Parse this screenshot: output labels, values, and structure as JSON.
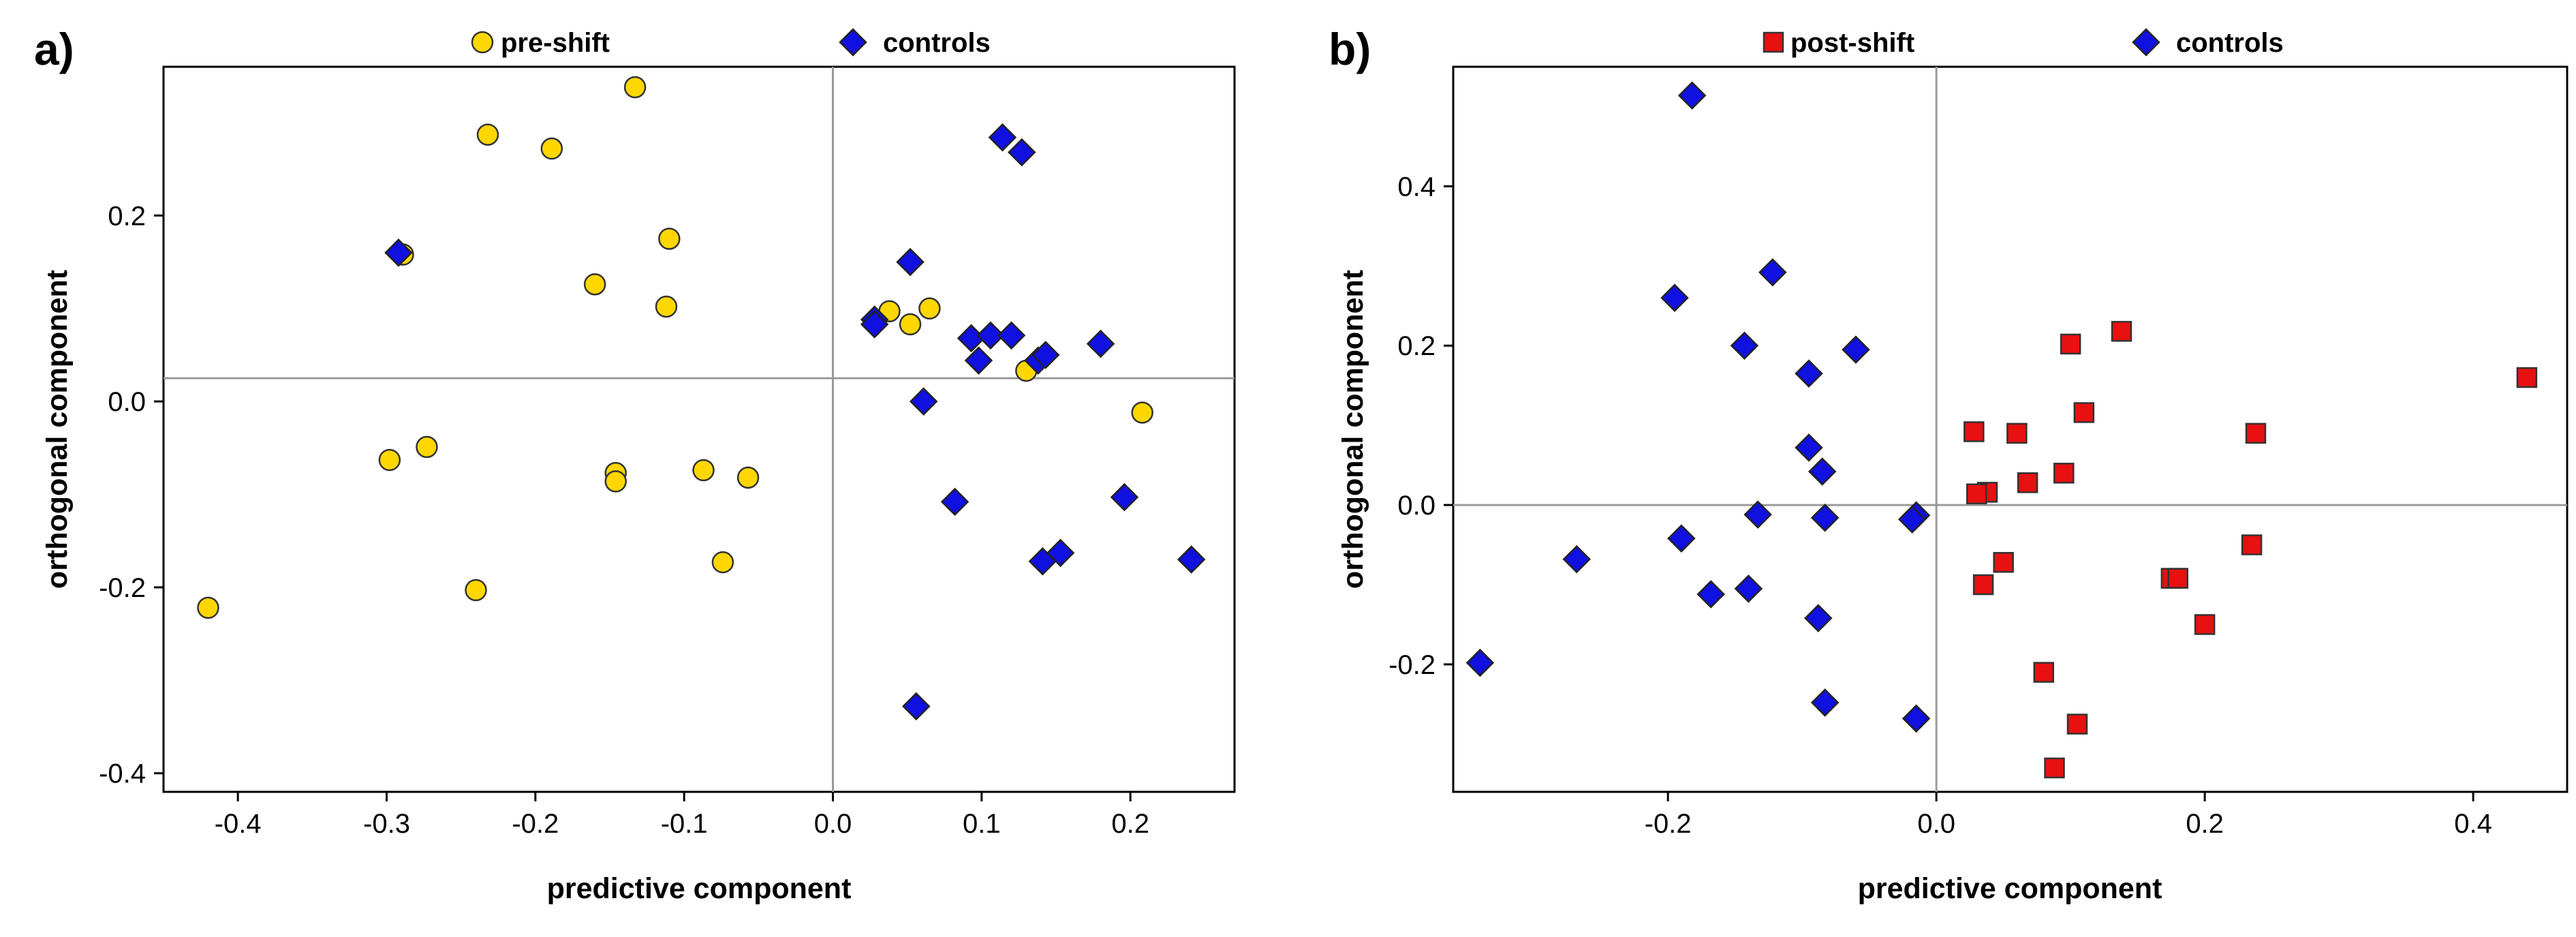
{
  "chart_data": [
    {
      "type": "scatter",
      "panel_label": "a)",
      "xlabel": "predictive component",
      "ylabel": "orthogonal component",
      "xlim": [
        -0.45,
        0.27
      ],
      "ylim": [
        -0.42,
        0.36
      ],
      "x_ticks": [
        -0.4,
        -0.3,
        -0.2,
        -0.1,
        0.0,
        0.1,
        0.2
      ],
      "x_tick_labels": [
        "-0.4",
        "-0.3",
        "-0.2",
        "-0.1",
        "0.0",
        "0.1",
        "0.2"
      ],
      "y_ticks": [
        -0.4,
        -0.2,
        0.0,
        0.2
      ],
      "y_tick_labels": [
        "-0.4",
        "-0.2",
        "0.0",
        "0.2"
      ],
      "zero_lines": {
        "x": 0.0,
        "y": 0.025
      },
      "series": [
        {
          "name": "pre-shift",
          "marker": "circle",
          "color": "#FFD700",
          "points": [
            [
              -0.133,
              0.338
            ],
            [
              -0.232,
              0.287
            ],
            [
              -0.189,
              0.272
            ],
            [
              -0.11,
              0.175
            ],
            [
              -0.16,
              0.126
            ],
            [
              -0.112,
              0.102
            ],
            [
              -0.289,
              0.158
            ],
            [
              0.038,
              0.097
            ],
            [
              0.065,
              0.1
            ],
            [
              0.052,
              0.083
            ],
            [
              0.13,
              0.033
            ],
            [
              0.208,
              -0.012
            ],
            [
              -0.298,
              -0.063
            ],
            [
              -0.273,
              -0.049
            ],
            [
              -0.146,
              -0.077
            ],
            [
              -0.146,
              -0.086
            ],
            [
              -0.087,
              -0.074
            ],
            [
              -0.057,
              -0.082
            ],
            [
              -0.074,
              -0.173
            ],
            [
              -0.24,
              -0.203
            ],
            [
              -0.42,
              -0.222
            ]
          ]
        },
        {
          "name": "controls",
          "marker": "diamond",
          "color": "#1010E0",
          "points": [
            [
              -0.292,
              0.16
            ],
            [
              0.114,
              0.284
            ],
            [
              0.127,
              0.268
            ],
            [
              0.052,
              0.15
            ],
            [
              0.028,
              0.088
            ],
            [
              0.028,
              0.083
            ],
            [
              0.093,
              0.068
            ],
            [
              0.106,
              0.071
            ],
            [
              0.12,
              0.071
            ],
            [
              0.098,
              0.044
            ],
            [
              0.138,
              0.044
            ],
            [
              0.143,
              0.05
            ],
            [
              0.18,
              0.062
            ],
            [
              0.061,
              0.0
            ],
            [
              0.082,
              -0.108
            ],
            [
              0.196,
              -0.103
            ],
            [
              0.153,
              -0.163
            ],
            [
              0.141,
              -0.172
            ],
            [
              0.241,
              -0.17
            ],
            [
              0.056,
              -0.328
            ]
          ]
        }
      ]
    },
    {
      "type": "scatter",
      "panel_label": "b)",
      "xlabel": "predictive component",
      "ylabel": "orthogonal component",
      "xlim": [
        -0.36,
        0.47
      ],
      "ylim": [
        -0.36,
        0.55
      ],
      "x_ticks": [
        -0.2,
        0.0,
        0.2,
        0.4
      ],
      "x_tick_labels": [
        "-0.2",
        "0.0",
        "0.2",
        "0.4"
      ],
      "y_ticks": [
        -0.2,
        0.0,
        0.2,
        0.4
      ],
      "y_tick_labels": [
        "-0.2",
        "0.0",
        "0.2",
        "0.4"
      ],
      "zero_lines": {
        "x": 0.0,
        "y": 0.0
      },
      "series": [
        {
          "name": "post-shift",
          "marker": "square",
          "color": "#E81010",
          "points": [
            [
              0.44,
              0.16
            ],
            [
              0.138,
              0.218
            ],
            [
              0.1,
              0.202
            ],
            [
              0.11,
              0.116
            ],
            [
              0.238,
              0.09
            ],
            [
              0.028,
              0.092
            ],
            [
              0.06,
              0.09
            ],
            [
              0.095,
              0.04
            ],
            [
              0.068,
              0.028
            ],
            [
              0.038,
              0.016
            ],
            [
              0.03,
              0.014
            ],
            [
              0.05,
              -0.072
            ],
            [
              0.035,
              -0.1
            ],
            [
              0.175,
              -0.092
            ],
            [
              0.18,
              -0.092
            ],
            [
              0.235,
              -0.05
            ],
            [
              0.2,
              -0.15
            ],
            [
              0.08,
              -0.21
            ],
            [
              0.105,
              -0.275
            ],
            [
              0.088,
              -0.33
            ]
          ]
        },
        {
          "name": "controls",
          "marker": "diamond",
          "color": "#1010E0",
          "points": [
            [
              -0.182,
              0.514
            ],
            [
              -0.122,
              0.292
            ],
            [
              -0.195,
              0.26
            ],
            [
              -0.143,
              0.2
            ],
            [
              -0.06,
              0.195
            ],
            [
              -0.095,
              0.165
            ],
            [
              -0.095,
              0.072
            ],
            [
              -0.085,
              0.042
            ],
            [
              -0.133,
              -0.012
            ],
            [
              -0.083,
              -0.016
            ],
            [
              -0.015,
              -0.013
            ],
            [
              -0.018,
              -0.018
            ],
            [
              -0.19,
              -0.042
            ],
            [
              -0.268,
              -0.068
            ],
            [
              -0.168,
              -0.112
            ],
            [
              -0.14,
              -0.105
            ],
            [
              -0.088,
              -0.142
            ],
            [
              -0.34,
              -0.198
            ],
            [
              -0.083,
              -0.248
            ],
            [
              -0.015,
              -0.268
            ]
          ]
        }
      ]
    }
  ]
}
